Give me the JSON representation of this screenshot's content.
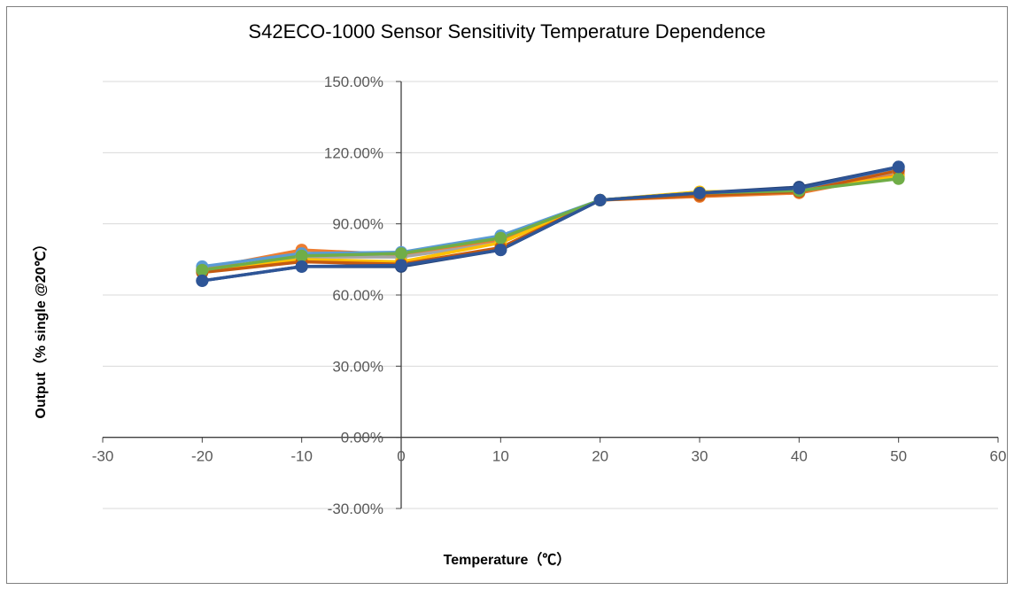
{
  "chart_data": {
    "type": "line",
    "title": "S42ECO-1000 Sensor Sensitivity Temperature Dependence",
    "xlabel": "Temperature（℃）",
    "ylabel": "Output（% single @20℃）",
    "xlim": [
      -30,
      60
    ],
    "ylim": [
      -30,
      150
    ],
    "x_ticks": [
      -30,
      -20,
      -10,
      0,
      10,
      20,
      30,
      40,
      50,
      60
    ],
    "y_ticks": [
      "-30.00%",
      "0.00%",
      "30.00%",
      "60.00%",
      "90.00%",
      "120.00%",
      "150.00%"
    ],
    "y_tick_values": [
      -30,
      0,
      30,
      60,
      90,
      120,
      150
    ],
    "grid": "horizontal",
    "x": [
      -20,
      -10,
      0,
      10,
      20,
      30,
      40,
      50
    ],
    "series": [
      {
        "color": "#ed7d31",
        "values": [
          71,
          79,
          77,
          83,
          100,
          101.5,
          103,
          111
        ]
      },
      {
        "color": "#a5a5a5",
        "values": [
          70,
          76,
          76,
          82,
          100,
          103,
          104.5,
          112
        ]
      },
      {
        "color": "#ffc000",
        "values": [
          70,
          75,
          74,
          82,
          100,
          103.5,
          104,
          110
        ]
      },
      {
        "color": "#5b9bd5",
        "values": [
          72,
          77.5,
          78,
          85,
          100,
          103,
          105,
          113
        ]
      },
      {
        "color": "#c55a11",
        "values": [
          69.5,
          74,
          73,
          80,
          100,
          102,
          103.5,
          112.5
        ]
      },
      {
        "color": "#264478",
        "values": [
          66,
          72,
          72,
          79,
          100,
          103,
          105.5,
          114
        ]
      },
      {
        "color": "#70ad47",
        "values": [
          70.5,
          76.5,
          77.5,
          84,
          100,
          103,
          104,
          109
        ]
      },
      {
        "color": "#2e5597",
        "values": [
          66,
          72,
          72.5,
          79,
          100,
          103,
          105,
          114
        ]
      }
    ]
  }
}
